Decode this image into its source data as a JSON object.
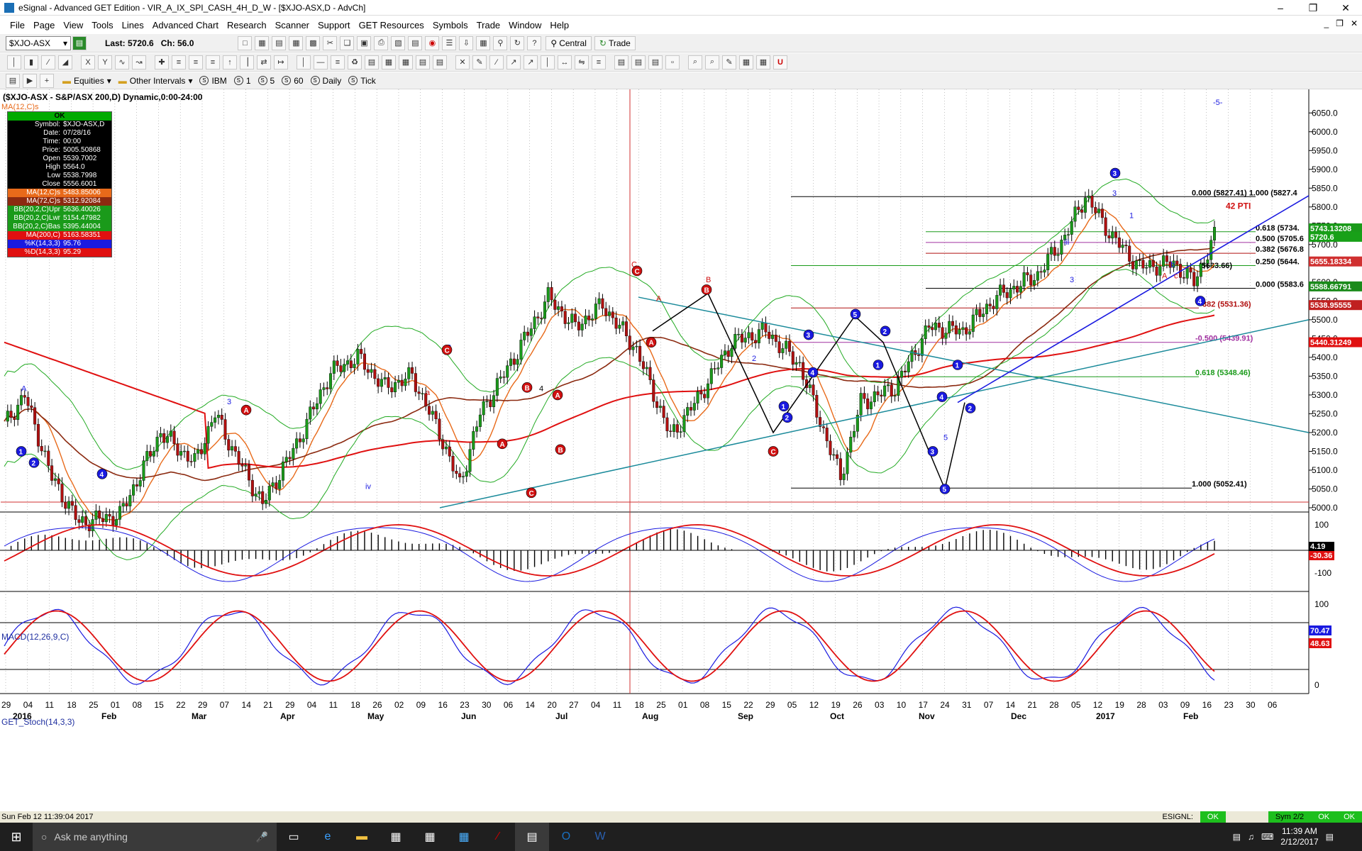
{
  "window": {
    "title": "eSignal - Advanced GET Edition - VIR_A_IX_SPI_CASH_4H_D_W - [$XJO-ASX,D - AdvCh]"
  },
  "menu": [
    "File",
    "Page",
    "View",
    "Tools",
    "Lines",
    "Advanced Chart",
    "Research",
    "Scanner",
    "Support",
    "GET Resources",
    "Symbols",
    "Trade",
    "Window",
    "Help"
  ],
  "toolbar": {
    "symbol": "$XJO-ASX",
    "last": "Last: 5720.6",
    "chg": "Ch: 56.0",
    "central": "Central",
    "trade": "Trade"
  },
  "intervals": {
    "equities": "Equities",
    "other": "Other Intervals",
    "items": [
      "IBM",
      "1",
      "5",
      "60",
      "Daily",
      "Tick"
    ]
  },
  "chart": {
    "title": "($XJO-ASX - S&P/ASX 200,D) Dynamic,0:00-24:00",
    "ma_label": "MA(12,C)s",
    "corner_mark": "-5-",
    "price_axis": [
      "6050.0",
      "6000.0",
      "5950.0",
      "5900.0",
      "5850.0",
      "5800.0",
      "5750.0",
      "5700.0",
      "5650.0",
      "5600.0",
      "5550.0",
      "5500.0",
      "5450.0",
      "5400.0",
      "5350.0",
      "5300.0",
      "5250.0",
      "5200.0",
      "5150.0",
      "5100.0",
      "5050.0",
      "5000.0"
    ],
    "fib_labels": [
      "0.000 (5827.41) 1.000 (5827.4",
      "0.618 (5734.",
      "0.500 (5705.6",
      "0.382 (5676.8",
      "0.250 (5644.",
      "0.000 (5583.6",
      "382 (5531.36)",
      "-0.500 (5439.91)",
      "0.618 (5348.46)",
      "1.000 (5052.41)",
      "(5633.66)"
    ],
    "pti": "42 PTI",
    "price_tags": [
      {
        "text": "5743.13208",
        "color": "#1a9a1a"
      },
      {
        "text": "5720.6",
        "color": "#18a018"
      },
      {
        "text": "5655.18334",
        "color": "#d03030"
      },
      {
        "text": "5588.66791",
        "color": "#1a8a1a"
      },
      {
        "text": "5538.95555",
        "color": "#c02020"
      },
      {
        "text": "5440.31249",
        "color": "#e01010"
      }
    ],
    "macd_label": "MACD(12,26,9,C)",
    "macd_axis": [
      "100",
      "-100"
    ],
    "macd_tags": [
      "4.19",
      "-30.36"
    ],
    "stoch_label": "GET_Stoch(14,3,3)",
    "stoch_axis": [
      "100",
      "0"
    ],
    "stoch_tags": [
      "70.47",
      "48.63"
    ],
    "date_ticks": [
      "29",
      "04",
      "11",
      "18",
      "25",
      "01",
      "08",
      "15",
      "22",
      "29",
      "07",
      "14",
      "21",
      "29",
      "04",
      "11",
      "18",
      "26",
      "02",
      "09",
      "16",
      "23",
      "30",
      "06",
      "14",
      "20",
      "27",
      "04",
      "11",
      "18",
      "25",
      "01",
      "08",
      "15",
      "22",
      "29",
      "05",
      "12",
      "19",
      "26",
      "03",
      "10",
      "17",
      "24",
      "31",
      "07",
      "14",
      "21",
      "28",
      "05",
      "12",
      "19",
      "28",
      "03",
      "09",
      "16",
      "23",
      "30",
      "06"
    ],
    "month_labels": [
      "2016",
      "Feb",
      "Mar",
      "Apr",
      "May",
      "Jun",
      "Jul",
      "Aug",
      "Sep",
      "Oct",
      "Nov",
      "Dec",
      "2017",
      "Feb"
    ],
    "wave_labels": [
      "3",
      "v",
      "A",
      "B",
      "C",
      "iii",
      "iv",
      "i",
      "ii",
      "1",
      "2",
      "4",
      "5",
      "a",
      "b",
      "c"
    ]
  },
  "info_box": {
    "ok": "OK",
    "rows": [
      [
        "Symbol:",
        "$XJO-ASX,D"
      ],
      [
        "Date:",
        "07/28/16"
      ],
      [
        "Time:",
        "00:00"
      ],
      [
        "Price:",
        "5005.50868"
      ],
      [
        "Open",
        "5539.7002"
      ],
      [
        "High",
        "5564.0"
      ],
      [
        "Low",
        "5538.7998"
      ],
      [
        "Close",
        "5556.6001"
      ]
    ],
    "ind_rows": [
      {
        "label": "MA(12,C)s",
        "value": "5483.85006",
        "color": "#e86a1a"
      },
      {
        "label": "MA(72,C)s",
        "value": "5312.92084",
        "color": "#8b2a10"
      },
      {
        "label": "BB(20,2,C)Upr",
        "value": "5636.40026",
        "color": "#1a9a1a"
      },
      {
        "label": "BB(20,2,C)Lwr",
        "value": "5154.47982",
        "color": "#1a9a1a"
      },
      {
        "label": "BB(20,2,C)Bas",
        "value": "5395.44004",
        "color": "#1a9a1a"
      },
      {
        "label": "MA(200,C)",
        "value": "5163.58351",
        "color": "#e01010"
      },
      {
        "label": "%K(14,3,3)",
        "value": "95.76",
        "color": "#1a1ae0"
      },
      {
        "label": "%D(14,3,3)",
        "value": "95.29",
        "color": "#e01010"
      }
    ]
  },
  "status": {
    "datetime": "Sun Feb 12 11:39:04 2017",
    "esignal": "ESIGNL:",
    "ok": "OK",
    "sym": "Sym 2/2"
  },
  "taskbar": {
    "search": "Ask me anything",
    "time": "11:39 AM",
    "date": "2/12/2017"
  },
  "colors": {
    "bull": "#1a9a1a",
    "bear": "#b01010",
    "ma12": "#e86a1a",
    "ma72": "#8b2a10",
    "ma200": "#e01010",
    "bb": "#22aa22",
    "trend": "#1a1ae0",
    "teal": "#1a8a9a"
  }
}
